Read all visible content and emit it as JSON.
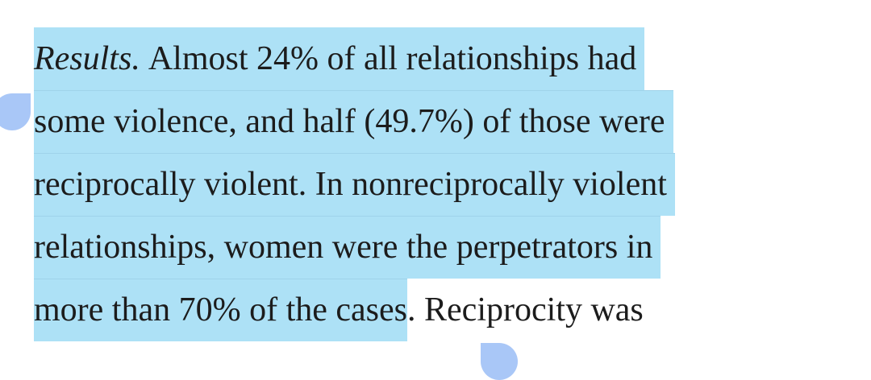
{
  "paragraph": {
    "lead": "Results.",
    "lines": [
      "Almost 24% of all relationships had",
      "some violence, and half (49.7%) of those were",
      "reciprocally violent. In nonreciprocally violent",
      "relationships, women were the perpetrators in",
      "more than 70% of the cases"
    ],
    "unselected": ". Reciprocity was"
  }
}
